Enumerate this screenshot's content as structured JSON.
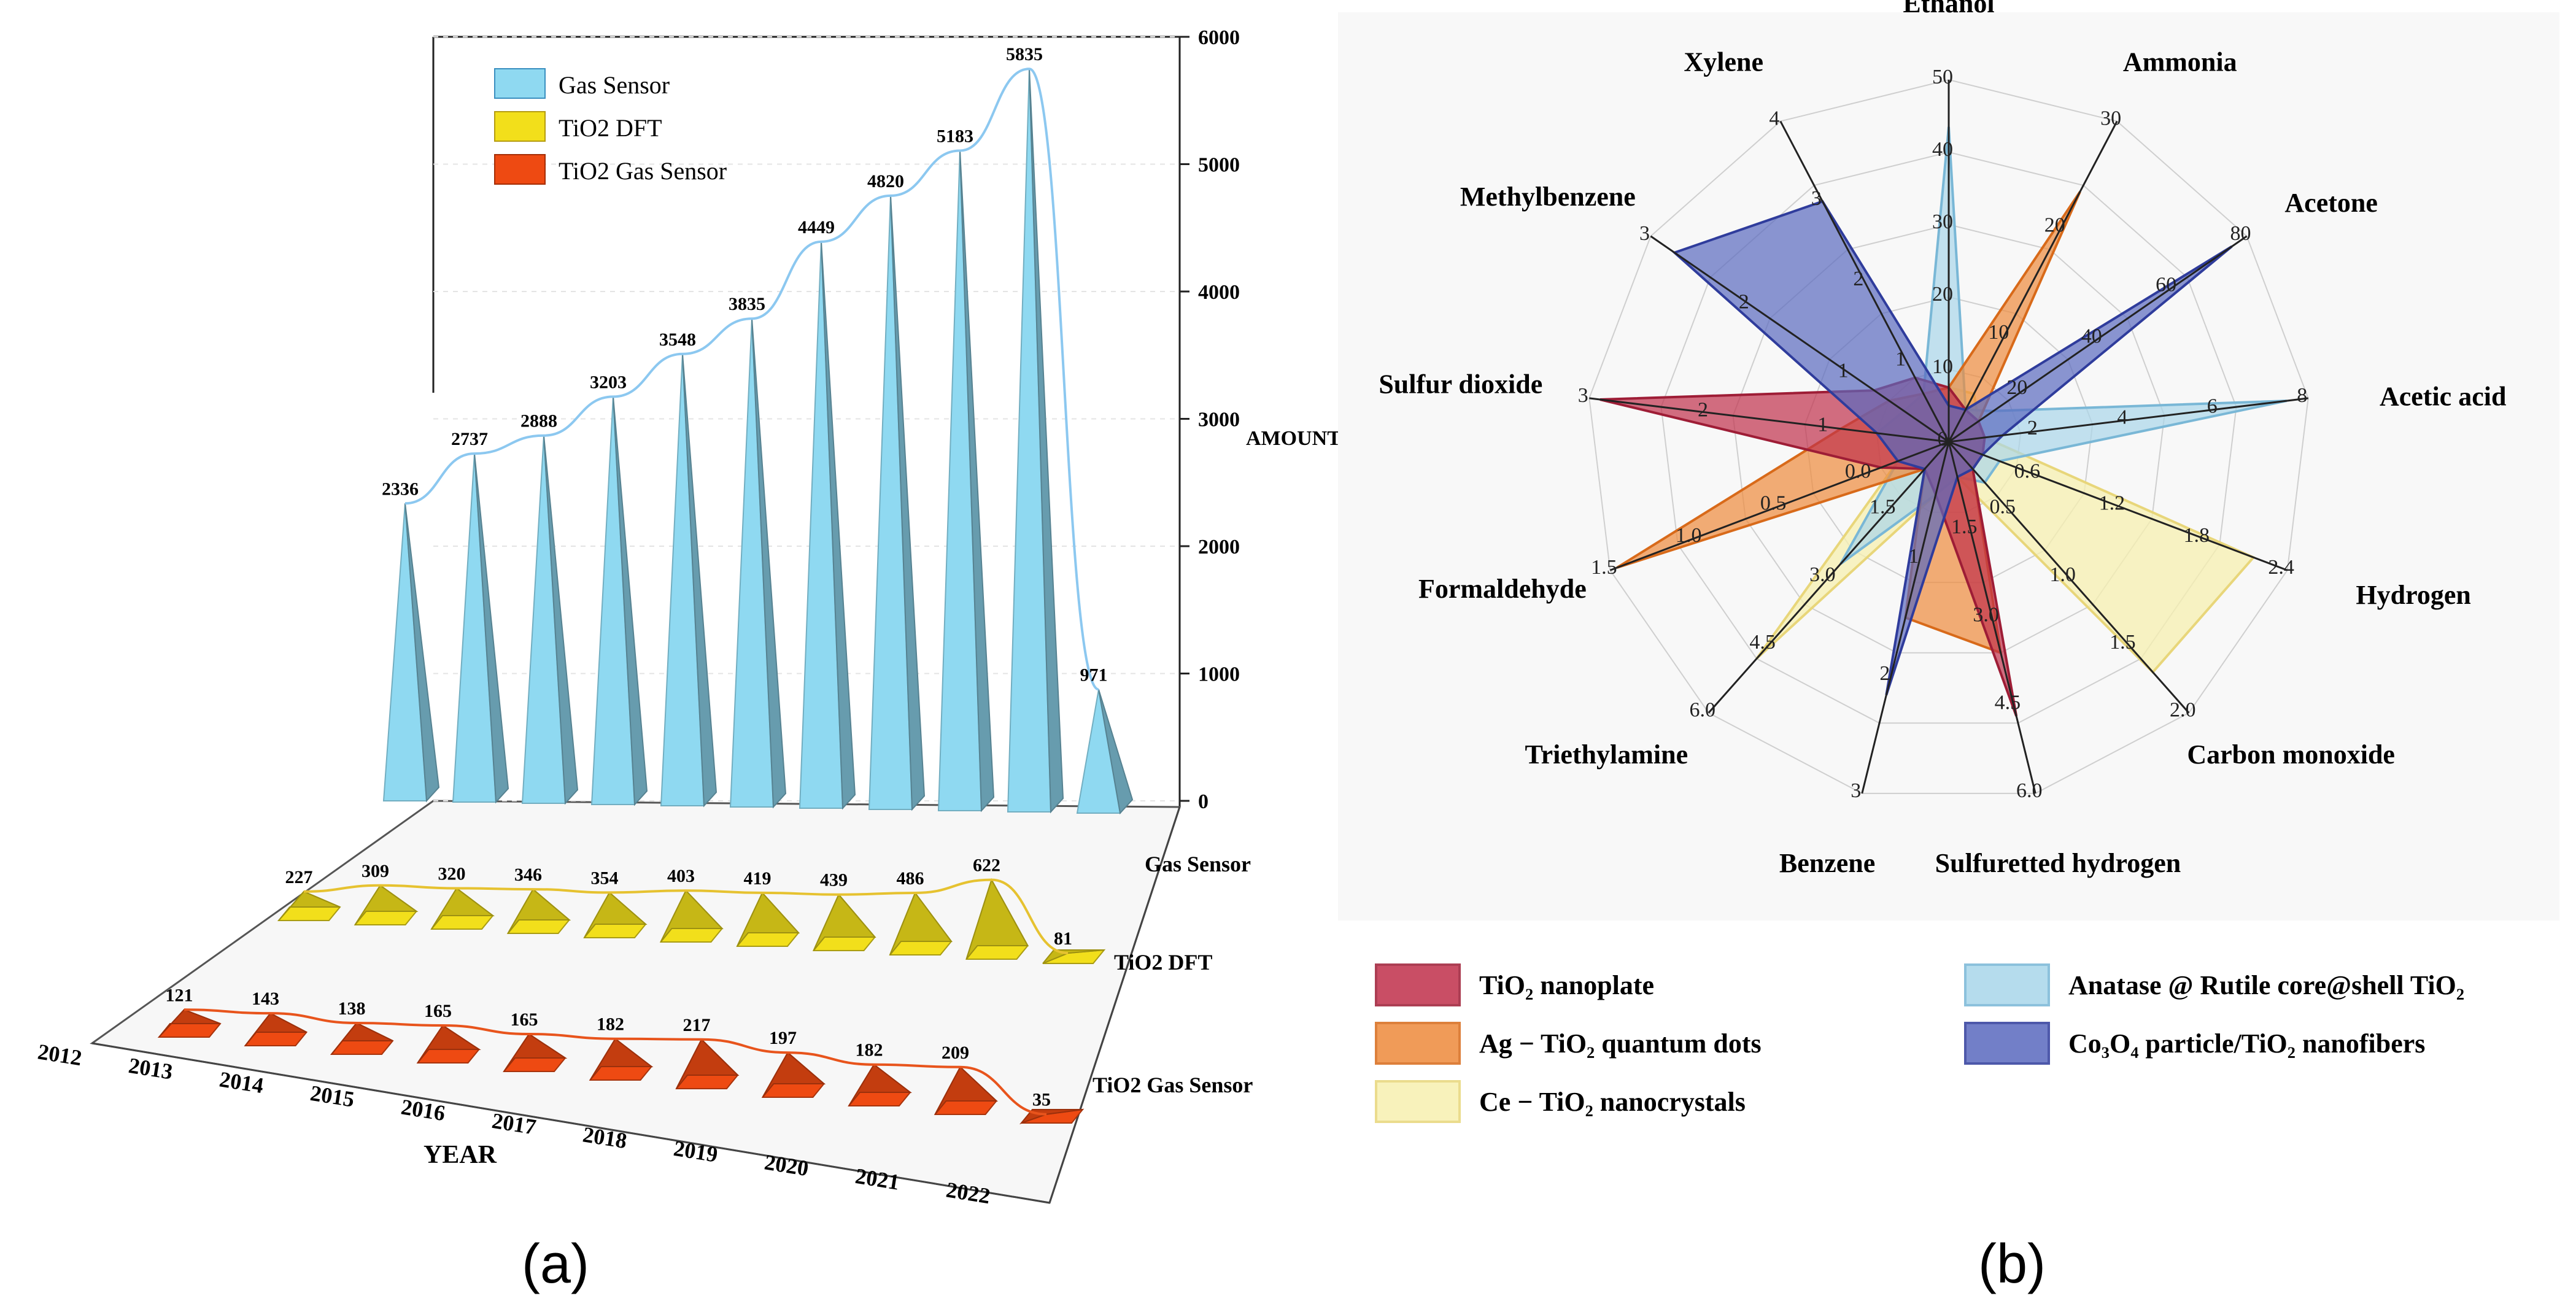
{
  "panel_a": {
    "caption": "(a)",
    "legend": [
      "Gas Sensor",
      "TiO2 DFT",
      "TiO2 Gas Sensor"
    ],
    "colors": {
      "gas_sensor": "#8fd9f1",
      "tio2_dft": "#f2df1b",
      "tio2_gas_sensor": "#ee4a12",
      "line_gas": "#8cc8f0",
      "line_dft": "#e6c230",
      "line_tio2": "#e8541c"
    },
    "axis_label_y": "AMOUNT",
    "axis_label_x": "YEAR",
    "row_labels": [
      "Gas Sensor",
      "TiO2 DFT",
      "TiO2 Gas Sensor"
    ]
  },
  "panel_b": {
    "caption": "(b)",
    "legend": [
      {
        "label": "TiO₂ nanoplate",
        "color": "#c0304b"
      },
      {
        "label": "Ag − TiO₂ quantum dots",
        "color": "#ee8a3c"
      },
      {
        "label": "Ce − TiO₂ nanocrystals",
        "color": "#f7f0b0"
      },
      {
        "label": "Anatase @ Rutile core@shell TiO₂",
        "color": "#a9d6ea"
      },
      {
        "label": "Co₃O₄ particle/TiO₂ nanofibers",
        "color": "#5a69bf"
      }
    ]
  },
  "chart_data": [
    {
      "type": "bar",
      "title": "",
      "xlabel": "YEAR",
      "ylabel": "AMOUNT",
      "ylim": [
        0,
        6000
      ],
      "yticks": [
        0,
        1000,
        2000,
        3000,
        4000,
        5000,
        6000
      ],
      "categories": [
        "2012",
        "2013",
        "2014",
        "2015",
        "2016",
        "2017",
        "2018",
        "2019",
        "2020",
        "2021",
        "2022"
      ],
      "series": [
        {
          "name": "Gas Sensor",
          "values": [
            2336,
            2737,
            2888,
            3203,
            3548,
            3835,
            4449,
            4820,
            5183,
            5835,
            971
          ]
        },
        {
          "name": "TiO2 DFT",
          "values": [
            227,
            309,
            320,
            346,
            354,
            403,
            419,
            439,
            486,
            622,
            81
          ]
        },
        {
          "name": "TiO2 Gas Sensor",
          "values": [
            121,
            143,
            138,
            165,
            165,
            182,
            217,
            197,
            182,
            209,
            35
          ]
        }
      ]
    },
    {
      "type": "radar",
      "axes": [
        {
          "name": "Ethanol",
          "ticks": [
            "10",
            "20",
            "30",
            "40",
            "50"
          ]
        },
        {
          "name": "Ammonia",
          "ticks": [
            "10",
            "20",
            "30"
          ]
        },
        {
          "name": "Acetone",
          "ticks": [
            "20",
            "40",
            "60",
            "80"
          ]
        },
        {
          "name": "Acetic acid",
          "ticks": [
            "0",
            "2",
            "4",
            "6",
            "8"
          ]
        },
        {
          "name": "Hydrogen",
          "ticks": [
            "0.6",
            "1.2",
            "1.8",
            "2.4"
          ]
        },
        {
          "name": "Carbon monoxide",
          "ticks": [
            "0.5",
            "1.0",
            "1.5",
            "2.0"
          ]
        },
        {
          "name": "Sulfuretted hydrogen",
          "ticks": [
            "1.5",
            "3.0",
            "4.5",
            "6.0"
          ]
        },
        {
          "name": "Benzene",
          "ticks": [
            "1",
            "2",
            "3"
          ]
        },
        {
          "name": "Triethylamine",
          "ticks": [
            "1.5",
            "3.0",
            "4.5",
            "6.0"
          ]
        },
        {
          "name": "Formaldehyde",
          "ticks": [
            "0.0",
            "0.5",
            "1.0",
            "1.5"
          ]
        },
        {
          "name": "Sulfur dioxide",
          "ticks": [
            "1",
            "2",
            "3"
          ]
        },
        {
          "name": "Methylbenzene",
          "ticks": [
            "1",
            "2",
            "3"
          ]
        },
        {
          "name": "Xylene",
          "ticks": [
            "1",
            "2",
            "3",
            "4"
          ]
        }
      ],
      "series": [
        {
          "name": "TiO2 nanoplate",
          "values": [
            0.15,
            0.1,
            0.1,
            0.1,
            0.1,
            0.1,
            0.78,
            0.15,
            0.1,
            0.2,
            0.97,
            0.25,
            0.2
          ]
        },
        {
          "name": "Ag − TiO2 quantum dots",
          "values": [
            0.15,
            0.78,
            0.1,
            0.1,
            0.1,
            0.1,
            0.6,
            0.5,
            0.1,
            0.98,
            0.3,
            0.2,
            0.15
          ]
        },
        {
          "name": "Ce − TiO2 nanocrystals",
          "values": [
            0.15,
            0.15,
            0.1,
            0.1,
            0.9,
            0.85,
            0.1,
            0.15,
            0.8,
            0.15,
            0.2,
            0.15,
            0.15
          ]
        },
        {
          "name": "Anatase @ Rutile core@shell TiO2",
          "values": [
            0.87,
            0.1,
            0.15,
            0.94,
            0.15,
            0.15,
            0.1,
            0.15,
            0.45,
            0.15,
            0.2,
            0.15,
            0.15
          ]
        },
        {
          "name": "Co3O4 particle/TiO2 nanofibers",
          "values": [
            0.1,
            0.1,
            0.95,
            0.15,
            0.1,
            0.1,
            0.1,
            0.72,
            0.1,
            0.15,
            0.2,
            0.92,
            0.75
          ]
        }
      ]
    }
  ]
}
